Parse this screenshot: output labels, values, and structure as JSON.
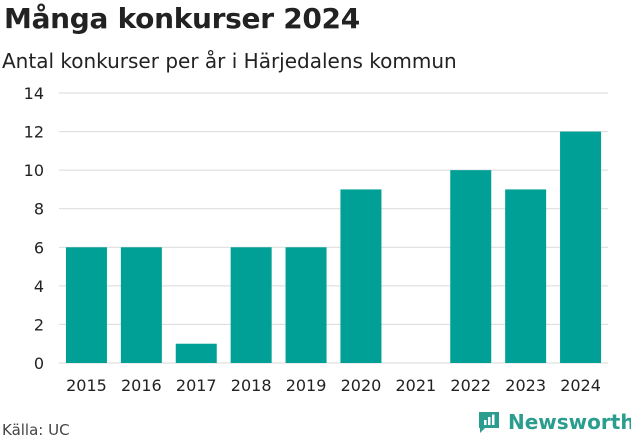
{
  "title": "Många konkurser 2024",
  "subtitle": "Antal konkurser per år i Härjedalens kommun",
  "source": "Källa: UC",
  "brand": "Newsworthy",
  "colors": {
    "bar": "#00a096",
    "grid": "#d9d9d9",
    "text": "#222222",
    "brand": "#2a9d8f"
  },
  "chart_data": {
    "type": "bar",
    "categories": [
      "2015",
      "2016",
      "2017",
      "2018",
      "2019",
      "2020",
      "2021",
      "2022",
      "2023",
      "2024"
    ],
    "values": [
      6,
      6,
      1,
      6,
      6,
      9,
      0,
      10,
      9,
      12
    ],
    "ylim": [
      0,
      14
    ],
    "yticks": [
      0,
      2,
      4,
      6,
      8,
      10,
      12,
      14
    ],
    "grid": true,
    "xlabel": "",
    "ylabel": ""
  }
}
